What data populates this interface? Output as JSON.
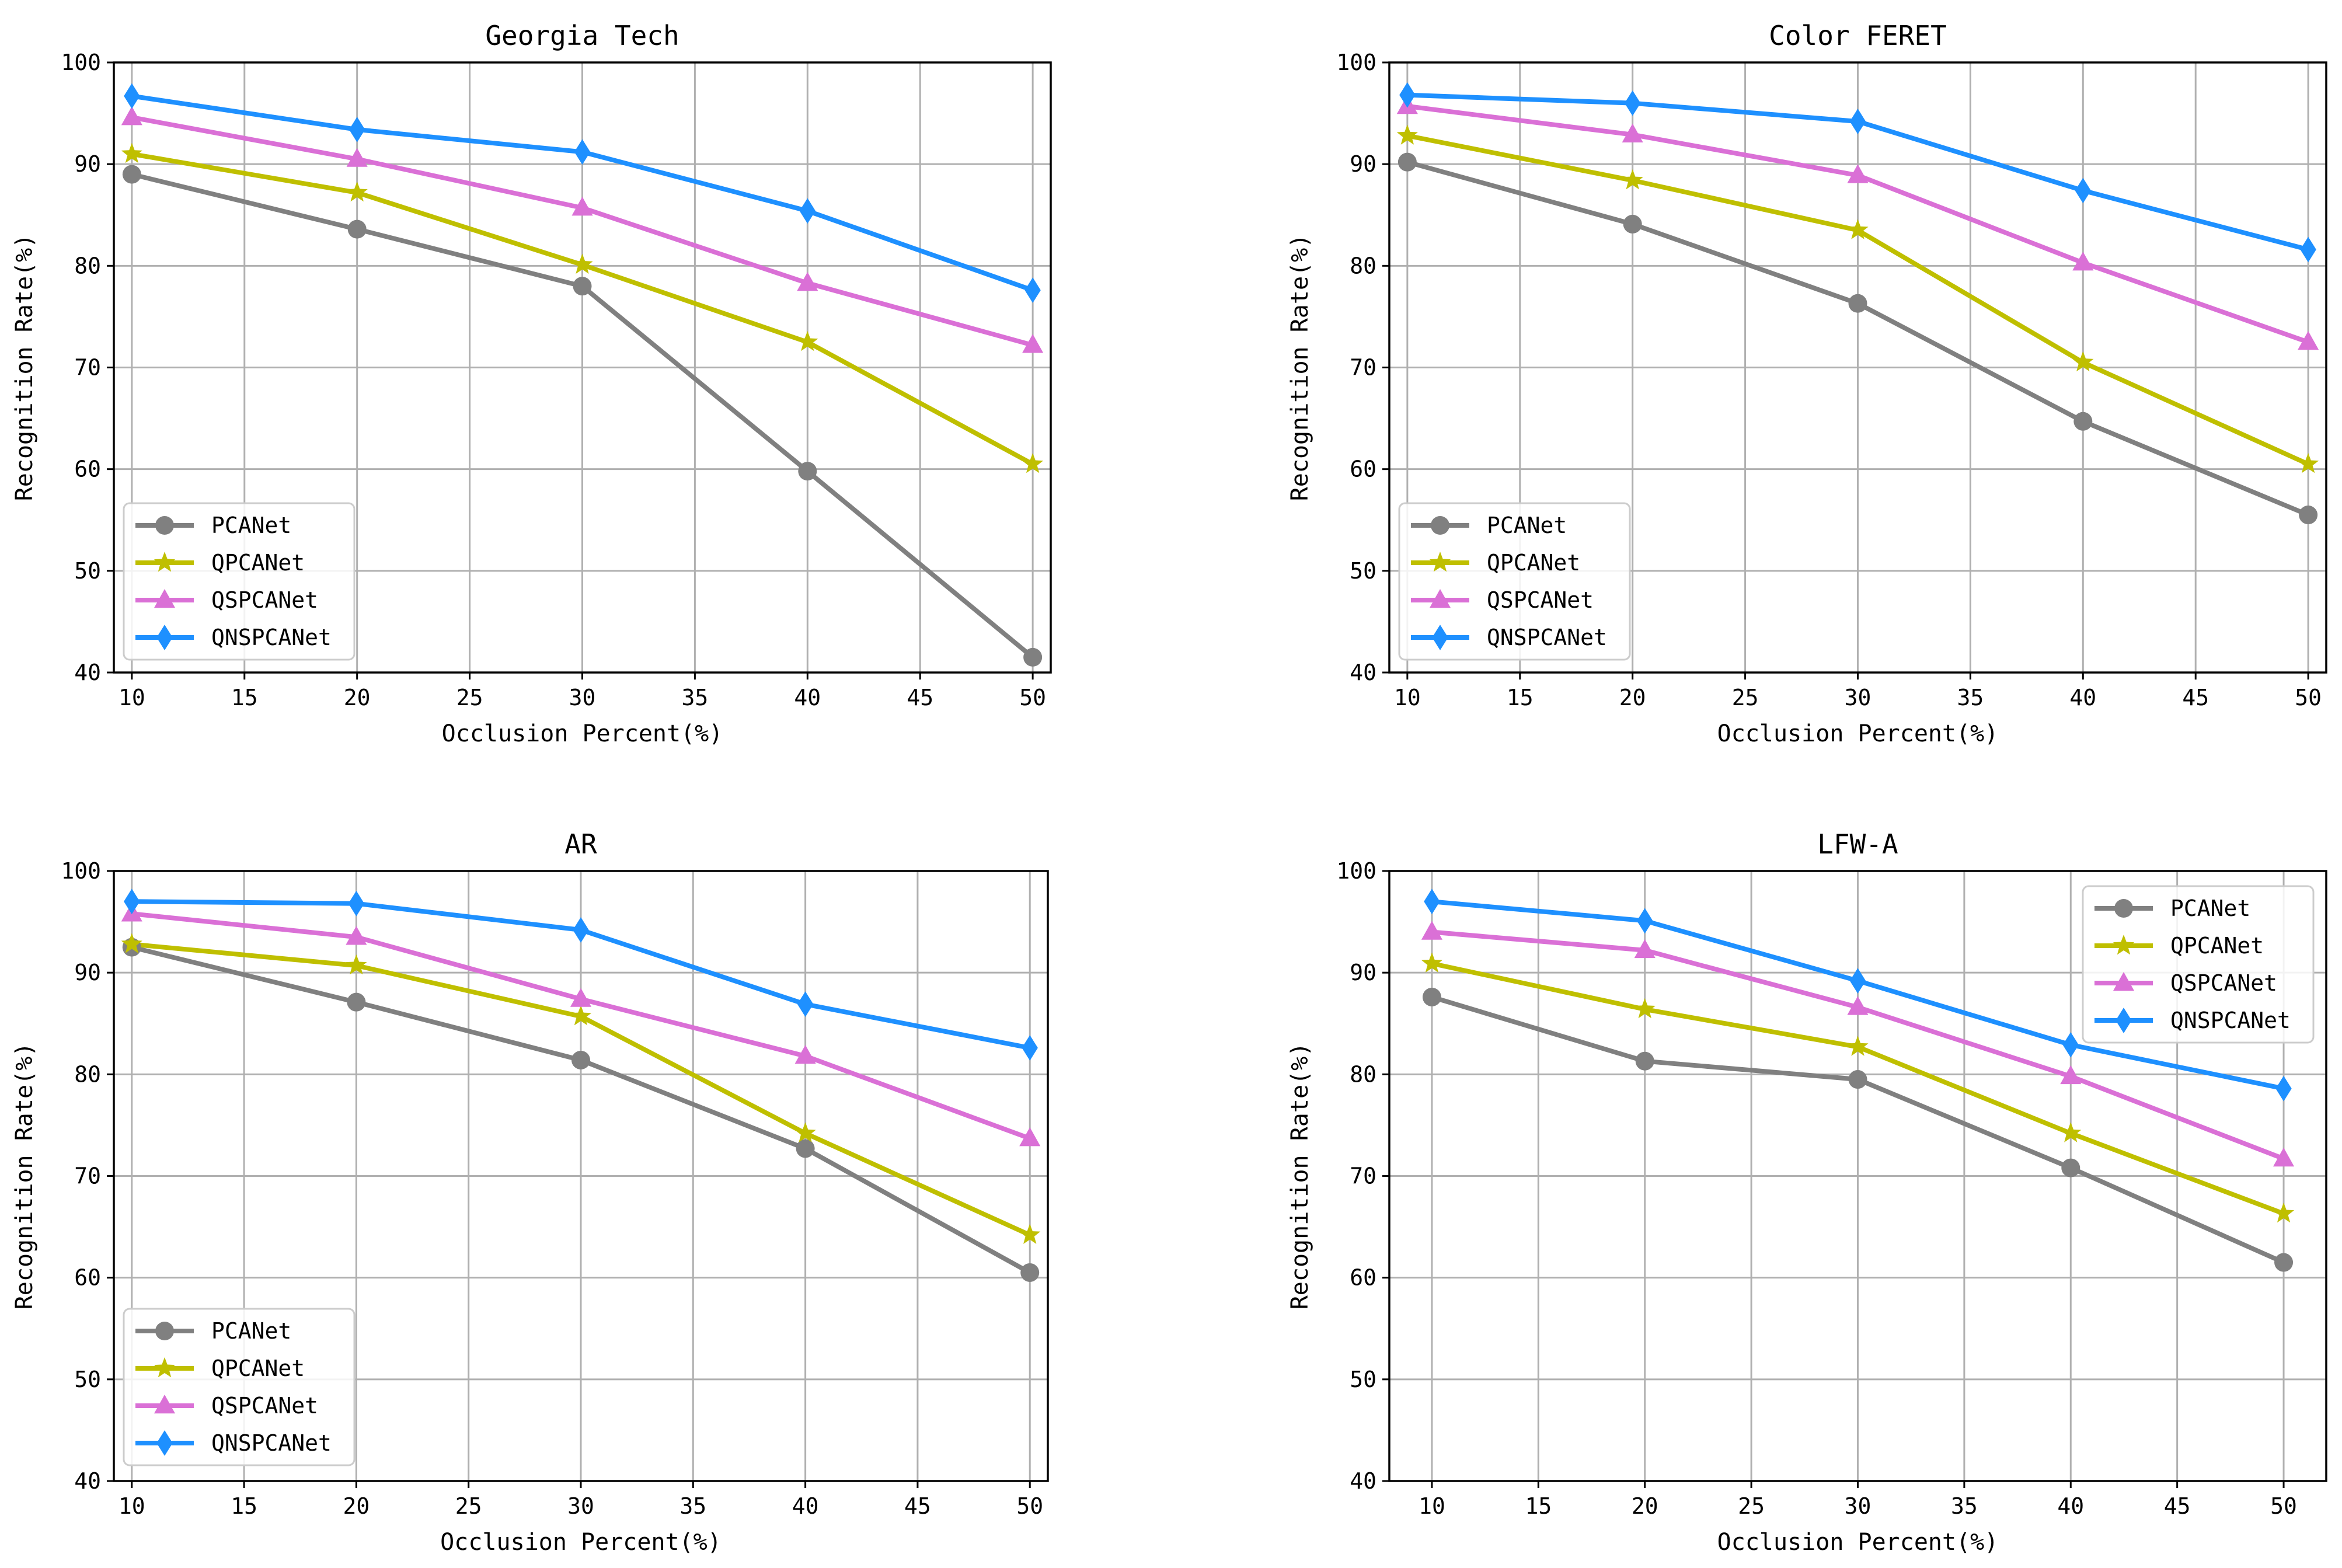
{
  "chart_data": [
    {
      "type": "line",
      "title": "Georgia Tech",
      "xlabel": "Occlusion Percent(%)",
      "ylabel": "Recognition Rate(%)",
      "x": [
        10,
        20,
        30,
        40,
        50
      ],
      "xlim": [
        9.2,
        50.8
      ],
      "ylim": [
        40,
        100
      ],
      "xticks": [
        10,
        15,
        20,
        25,
        30,
        35,
        40,
        45,
        50
      ],
      "yticks": [
        40,
        50,
        60,
        70,
        80,
        90,
        100
      ],
      "grid": true,
      "legend_position": "lower-left",
      "series": [
        {
          "name": "PCANet",
          "color": "#808080",
          "marker": "circle",
          "values": [
            89.0,
            83.6,
            78.0,
            59.8,
            41.5
          ]
        },
        {
          "name": "QPCANet",
          "color": "#bfbf00",
          "marker": "star",
          "values": [
            91.0,
            87.2,
            80.1,
            72.5,
            60.5
          ]
        },
        {
          "name": "QSPCANet",
          "color": "#da70d6",
          "marker": "triangle",
          "values": [
            94.6,
            90.5,
            85.7,
            78.3,
            72.2
          ]
        },
        {
          "name": "QNSPCANet",
          "color": "#1e90ff",
          "marker": "diamond",
          "values": [
            96.7,
            93.4,
            91.2,
            85.4,
            77.6
          ]
        }
      ]
    },
    {
      "type": "line",
      "title": "Color FERET",
      "xlabel": "Occlusion Percent(%)",
      "ylabel": "Recognition Rate(%)",
      "x": [
        10,
        20,
        30,
        40,
        50
      ],
      "xlim": [
        9.2,
        50.8
      ],
      "ylim": [
        40,
        100
      ],
      "xticks": [
        10,
        15,
        20,
        25,
        30,
        35,
        40,
        45,
        50
      ],
      "yticks": [
        40,
        50,
        60,
        70,
        80,
        90,
        100
      ],
      "grid": true,
      "legend_position": "lower-left",
      "series": [
        {
          "name": "PCANet",
          "color": "#808080",
          "marker": "circle",
          "values": [
            90.2,
            84.1,
            76.3,
            64.7,
            55.5
          ]
        },
        {
          "name": "QPCANet",
          "color": "#bfbf00",
          "marker": "star",
          "values": [
            92.8,
            88.4,
            83.5,
            70.5,
            60.5
          ]
        },
        {
          "name": "QSPCANet",
          "color": "#da70d6",
          "marker": "triangle",
          "values": [
            95.7,
            92.9,
            88.9,
            80.3,
            72.5
          ]
        },
        {
          "name": "QNSPCANet",
          "color": "#1e90ff",
          "marker": "diamond",
          "values": [
            96.8,
            96.0,
            94.2,
            87.4,
            81.6
          ]
        }
      ]
    },
    {
      "type": "line",
      "title": "AR",
      "xlabel": "Occlusion Percent(%)",
      "ylabel": "Recognition Rate(%)",
      "x": [
        10,
        20,
        30,
        40,
        50
      ],
      "xlim": [
        9.2,
        50.8
      ],
      "ylim": [
        40,
        100
      ],
      "xticks": [
        10,
        15,
        20,
        25,
        30,
        35,
        40,
        45,
        50
      ],
      "yticks": [
        40,
        50,
        60,
        70,
        80,
        90,
        100
      ],
      "grid": true,
      "legend_position": "lower-left",
      "series": [
        {
          "name": "PCANet",
          "color": "#808080",
          "marker": "circle",
          "values": [
            92.5,
            87.1,
            81.4,
            72.7,
            60.5
          ]
        },
        {
          "name": "QPCANet",
          "color": "#bfbf00",
          "marker": "star",
          "values": [
            92.8,
            90.7,
            85.7,
            74.2,
            64.2
          ]
        },
        {
          "name": "QSPCANet",
          "color": "#da70d6",
          "marker": "triangle",
          "values": [
            95.8,
            93.5,
            87.4,
            81.8,
            73.7
          ]
        },
        {
          "name": "QNSPCANet",
          "color": "#1e90ff",
          "marker": "diamond",
          "values": [
            97.0,
            96.8,
            94.2,
            86.9,
            82.6
          ]
        }
      ]
    },
    {
      "type": "line",
      "title": "LFW-A",
      "xlabel": "Occlusion Percent(%)",
      "ylabel": "Recognition Rate(%)",
      "x": [
        10,
        20,
        30,
        40,
        50
      ],
      "xlim": [
        8,
        52
      ],
      "ylim": [
        40,
        100
      ],
      "xticks": [
        10,
        15,
        20,
        25,
        30,
        35,
        40,
        45,
        50
      ],
      "yticks": [
        40,
        50,
        60,
        70,
        80,
        90,
        100
      ],
      "grid": true,
      "legend_position": "upper-right",
      "series": [
        {
          "name": "PCANet",
          "color": "#808080",
          "marker": "circle",
          "values": [
            87.6,
            81.3,
            79.5,
            70.8,
            61.5
          ]
        },
        {
          "name": "QPCANet",
          "color": "#bfbf00",
          "marker": "star",
          "values": [
            90.9,
            86.4,
            82.7,
            74.2,
            66.3
          ]
        },
        {
          "name": "QSPCANet",
          "color": "#da70d6",
          "marker": "triangle",
          "values": [
            94.0,
            92.2,
            86.6,
            79.8,
            71.7
          ]
        },
        {
          "name": "QNSPCANet",
          "color": "#1e90ff",
          "marker": "diamond",
          "values": [
            97.0,
            95.1,
            89.2,
            82.9,
            78.6
          ]
        }
      ]
    }
  ]
}
